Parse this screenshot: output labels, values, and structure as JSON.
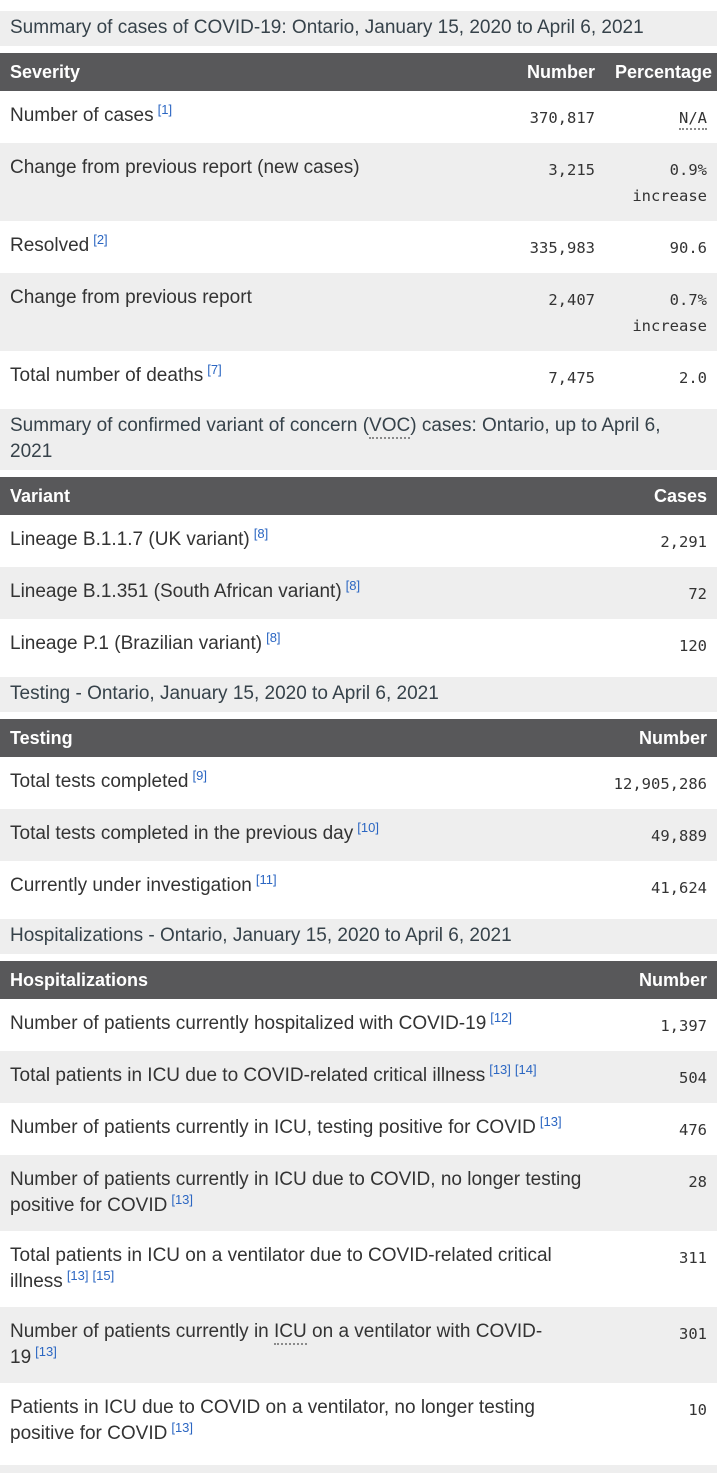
{
  "colors": {
    "table_header_bg": "#58585a",
    "caption_band_bg": "#eeeeee",
    "alt_row_bg": "#eeeeee",
    "body_text": "#333333",
    "header_text": "#ffffff",
    "footnote_link": "#2b66c2"
  },
  "sections": {
    "cases": {
      "caption": "Summary of cases of COVID-19: Ontario, January 15, 2020 to April 6, 2021",
      "columns": {
        "c1": "Severity",
        "c2": "Number",
        "c3": "Percentage"
      },
      "rows": {
        "r1": {
          "label": "Number of cases",
          "fn1": "[1]",
          "number": "370,817",
          "pct": "N/A"
        },
        "r2": {
          "label": "Change from previous report (new cases)",
          "number": "3,215",
          "pct": "0.9% increase"
        },
        "r3": {
          "label": "Resolved",
          "fn1": "[2]",
          "number": "335,983",
          "pct": "90.6"
        },
        "r4": {
          "label": "Change from previous report",
          "number": "2,407",
          "pct": "0.7% increase"
        },
        "r5": {
          "label": "Total number of deaths",
          "fn1": "[7]",
          "number": "7,475",
          "pct": "2.0"
        }
      }
    },
    "voc": {
      "caption_pre": "Summary of confirmed variant of concern (",
      "caption_abbr": "VOC",
      "caption_post": ") cases: Ontario, up to April 6, 2021",
      "columns": {
        "c1": "Variant",
        "c2": "Cases"
      },
      "rows": {
        "r1": {
          "label": "Lineage B.1.1.7 (UK variant)",
          "fn1": "[8]",
          "number": "2,291"
        },
        "r2": {
          "label": "Lineage B.1.351 (South African variant)",
          "fn1": "[8]",
          "number": "72"
        },
        "r3": {
          "label": "Lineage P.1 (Brazilian variant)",
          "fn1": "[8]",
          "number": "120"
        }
      }
    },
    "testing": {
      "caption": "Testing - Ontario, January 15, 2020 to April 6, 2021",
      "columns": {
        "c1": "Testing",
        "c2": "Number"
      },
      "rows": {
        "r1": {
          "label": "Total tests completed",
          "fn1": "[9]",
          "number": "12,905,286"
        },
        "r2": {
          "label": "Total tests completed in the previous day",
          "fn1": "[10]",
          "number": "49,889"
        },
        "r3": {
          "label": "Currently under investigation",
          "fn1": "[11]",
          "number": "41,624"
        }
      }
    },
    "hospitalizations": {
      "caption": "Hospitalizations - Ontario, January 15, 2020 to April 6, 2021",
      "columns": {
        "c1": "Hospitalizations",
        "c2": "Number"
      },
      "rows": {
        "r1": {
          "label": "Number of patients currently hospitalized with COVID-19",
          "fn1": "[12]",
          "number": "1,397"
        },
        "r2": {
          "label": "Total patients in ICU due to COVID-related critical illness",
          "fn1": "[13]",
          "fn2": "[14]",
          "number": "504"
        },
        "r3": {
          "label": "Number of patients currently in ICU, testing positive for COVID",
          "fn1": "[13]",
          "number": "476"
        },
        "r4": {
          "label": "Number of patients currently in ICU due to COVID, no longer testing positive for COVID",
          "fn1": "[13]",
          "number": "28"
        },
        "r5": {
          "label": "Total patients in ICU on a ventilator due to COVID-related critical illness",
          "fn1": "[13]",
          "fn2": "[15]",
          "number": "311"
        },
        "r6": {
          "label_pre": "Number of patients currently in ",
          "label_abbr": "ICU",
          "label_post": " on a ventilator with COVID-19",
          "fn1": "[13]",
          "number": "301"
        },
        "r7": {
          "label": "Patients in ICU due to COVID on a ventilator, no longer testing positive for COVID",
          "fn1": "[13]",
          "number": "10"
        }
      }
    }
  }
}
